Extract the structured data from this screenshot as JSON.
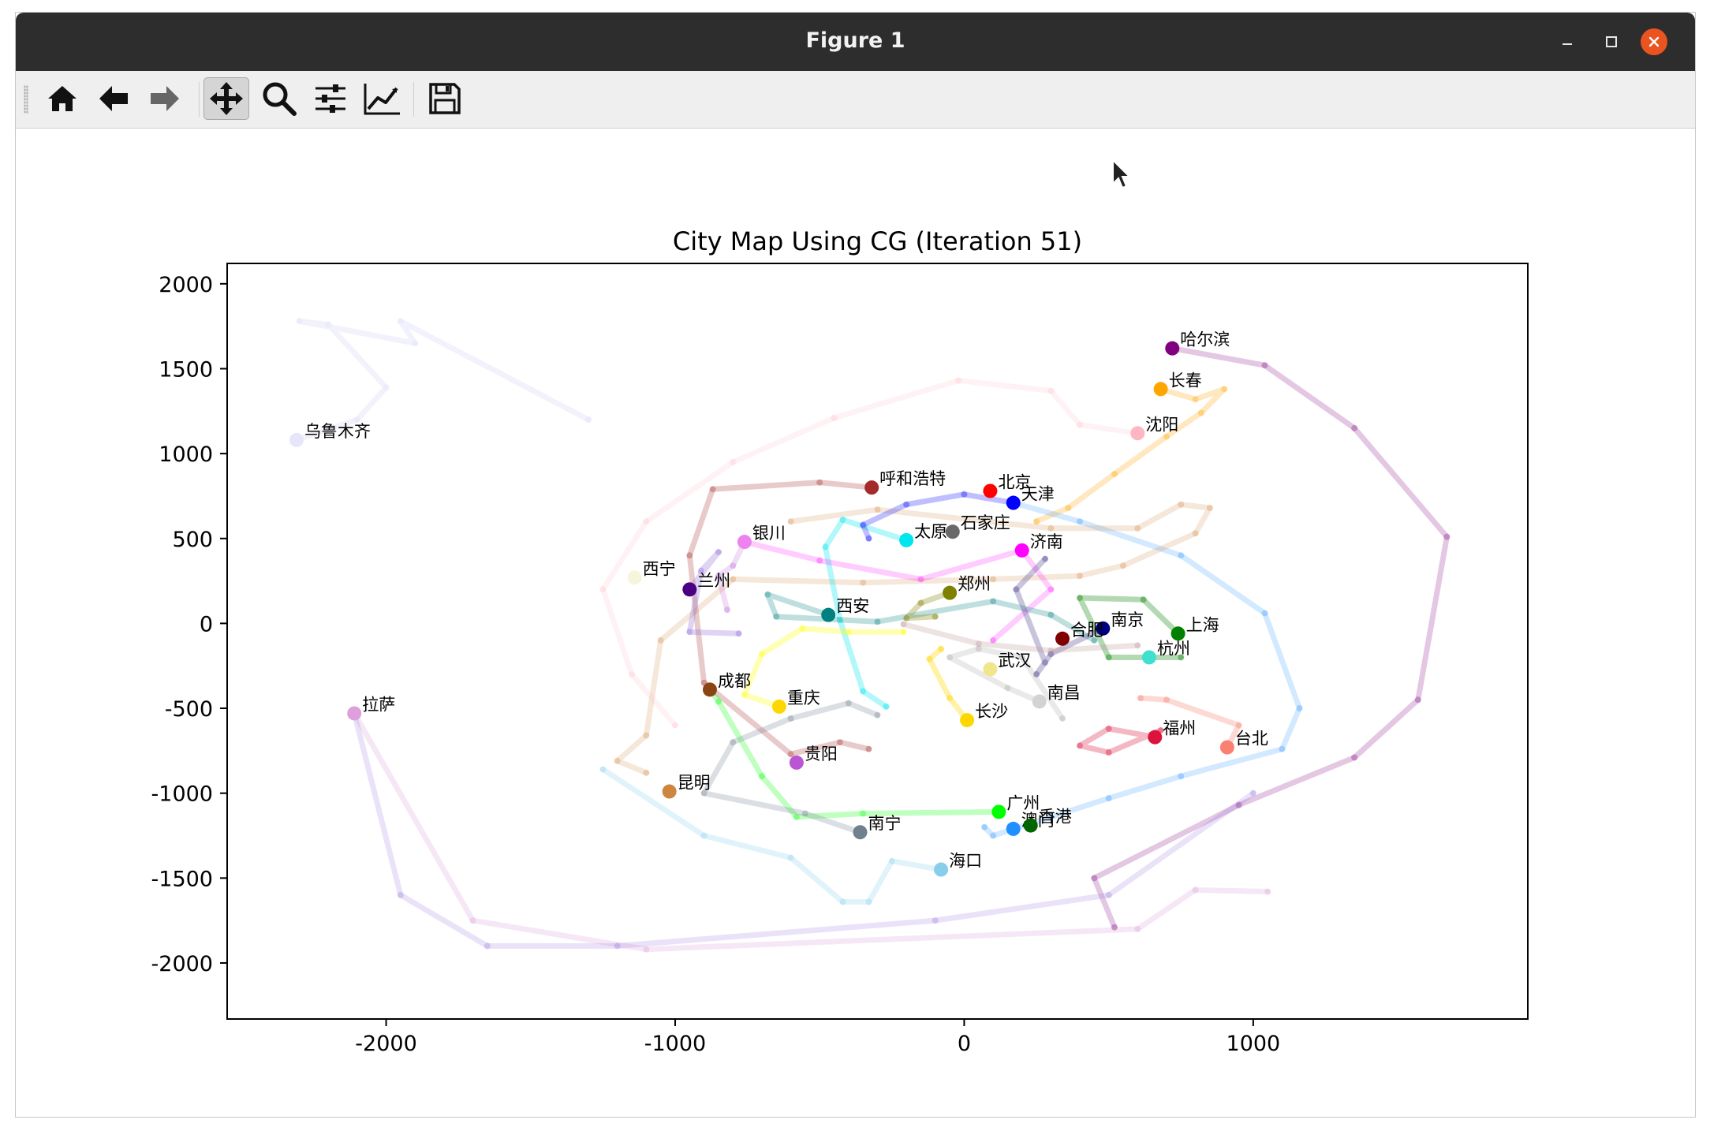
{
  "window": {
    "title": "Figure 1",
    "controls": {
      "minimize": "minimize-icon",
      "maximize": "maximize-icon",
      "close": "close-icon"
    },
    "accent": "#e95420"
  },
  "toolbar": {
    "buttons": [
      {
        "name": "home-button",
        "icon": "home-icon",
        "active": false
      },
      {
        "name": "back-button",
        "icon": "arrow-left-icon",
        "active": false
      },
      {
        "name": "forward-button",
        "icon": "arrow-right-icon",
        "active": false
      },
      {
        "name": "pan-button",
        "icon": "move-icon",
        "active": true
      },
      {
        "name": "zoom-button",
        "icon": "magnifier-icon",
        "active": false
      },
      {
        "name": "subplots-button",
        "icon": "sliders-icon",
        "active": false
      },
      {
        "name": "axes-edit-button",
        "icon": "line-chart-icon",
        "active": false
      },
      {
        "name": "save-button",
        "icon": "floppy-icon",
        "active": false
      }
    ]
  },
  "chart_data": {
    "type": "scatter",
    "title": "City Map Using CG (Iteration 51)",
    "xlabel": "",
    "ylabel": "",
    "xlim": [
      -2550,
      1950
    ],
    "ylim": [
      -2330,
      2120
    ],
    "xticks": [
      -2000,
      -1000,
      0,
      1000
    ],
    "xtick_labels": [
      "-2000",
      "-1000",
      "0",
      "1000"
    ],
    "yticks": [
      2000,
      1500,
      1000,
      500,
      0,
      -500,
      -1000,
      -1500,
      -2000
    ],
    "ytick_labels": [
      "2000",
      "1500",
      "1000",
      "500",
      "0",
      "-500",
      "-1000",
      "-1500",
      "-2000"
    ],
    "grid": false,
    "legend": "none",
    "points": [
      {
        "label": "哈尔滨",
        "x": 720,
        "y": 1620,
        "color": "#800080"
      },
      {
        "label": "长春",
        "x": 680,
        "y": 1380,
        "color": "#ffa500"
      },
      {
        "label": "沈阳",
        "x": 600,
        "y": 1120,
        "color": "#ffb6c1"
      },
      {
        "label": "乌鲁木齐",
        "x": -2310,
        "y": 1080,
        "color": "#e6e6fa"
      },
      {
        "label": "呼和浩特",
        "x": -320,
        "y": 800,
        "color": "#a52a2a"
      },
      {
        "label": "北京",
        "x": 90,
        "y": 780,
        "color": "#ff0000"
      },
      {
        "label": "天津",
        "x": 170,
        "y": 710,
        "color": "#0000ff"
      },
      {
        "label": "石家庄",
        "x": -40,
        "y": 540,
        "color": "#696969"
      },
      {
        "label": "太原",
        "x": -200,
        "y": 490,
        "color": "#00e5ee"
      },
      {
        "label": "济南",
        "x": 200,
        "y": 430,
        "color": "#ff00ff"
      },
      {
        "label": "银川",
        "x": -760,
        "y": 480,
        "color": "#ee82ee"
      },
      {
        "label": "西宁",
        "x": -1140,
        "y": 270,
        "color": "#f5f5dc"
      },
      {
        "label": "兰州",
        "x": -950,
        "y": 200,
        "color": "#4b0082"
      },
      {
        "label": "郑州",
        "x": -50,
        "y": 180,
        "color": "#808000"
      },
      {
        "label": "西安",
        "x": -470,
        "y": 50,
        "color": "#008080"
      },
      {
        "label": "南京",
        "x": 480,
        "y": -30,
        "color": "#000080"
      },
      {
        "label": "上海",
        "x": 740,
        "y": -60,
        "color": "#008000"
      },
      {
        "label": "合肥",
        "x": 340,
        "y": -90,
        "color": "#800000"
      },
      {
        "label": "杭州",
        "x": 640,
        "y": -200,
        "color": "#40e0d0"
      },
      {
        "label": "武汉",
        "x": 90,
        "y": -270,
        "color": "#f0e68c"
      },
      {
        "label": "成都",
        "x": -880,
        "y": -390,
        "color": "#8b4513"
      },
      {
        "label": "南昌",
        "x": 260,
        "y": -460,
        "color": "#d3d3d3"
      },
      {
        "label": "重庆",
        "x": -640,
        "y": -490,
        "color": "#ffd700"
      },
      {
        "label": "长沙",
        "x": 10,
        "y": -570,
        "color": "#ffd700"
      },
      {
        "label": "拉萨",
        "x": -2110,
        "y": -530,
        "color": "#dda0dd"
      },
      {
        "label": "福州",
        "x": 660,
        "y": -670,
        "color": "#dc143c"
      },
      {
        "label": "台北",
        "x": 910,
        "y": -730,
        "color": "#fa8072"
      },
      {
        "label": "贵阳",
        "x": -580,
        "y": -820,
        "color": "#ba55d3"
      },
      {
        "label": "昆明",
        "x": -1020,
        "y": -990,
        "color": "#cd853f"
      },
      {
        "label": "广州",
        "x": 120,
        "y": -1110,
        "color": "#00ff00"
      },
      {
        "label": "澳门",
        "x": 170,
        "y": -1210,
        "color": "#1e90ff"
      },
      {
        "label": "香港",
        "x": 230,
        "y": -1190,
        "color": "#006400"
      },
      {
        "label": "南宁",
        "x": -360,
        "y": -1230,
        "color": "#708090"
      },
      {
        "label": "海口",
        "x": -80,
        "y": -1450,
        "color": "#87ceeb"
      }
    ],
    "trails": [
      {
        "color": "#800080",
        "opacity": 0.22,
        "points": [
          [
            720,
            1620
          ],
          [
            1040,
            1520
          ],
          [
            1350,
            1150
          ],
          [
            1670,
            510
          ],
          [
            1570,
            -450
          ],
          [
            1350,
            -790
          ],
          [
            950,
            -1070
          ],
          [
            450,
            -1500
          ],
          [
            520,
            -1790
          ]
        ]
      },
      {
        "color": "#ffa500",
        "opacity": 0.25,
        "points": [
          [
            680,
            1380
          ],
          [
            800,
            1320
          ],
          [
            900,
            1380
          ],
          [
            820,
            1240
          ],
          [
            700,
            1100
          ],
          [
            520,
            880
          ],
          [
            360,
            680
          ],
          [
            250,
            600
          ]
        ]
      },
      {
        "color": "#1e90ff",
        "opacity": 0.2,
        "points": [
          [
            170,
            710
          ],
          [
            400,
            600
          ],
          [
            750,
            400
          ],
          [
            1040,
            60
          ],
          [
            1160,
            -500
          ],
          [
            1100,
            -740
          ],
          [
            750,
            -900
          ],
          [
            500,
            -1030
          ],
          [
            300,
            -1140
          ],
          [
            100,
            -1250
          ],
          [
            70,
            -1200
          ]
        ]
      },
      {
        "color": "#cd853f",
        "opacity": 0.2,
        "points": [
          [
            -600,
            600
          ],
          [
            -300,
            670
          ],
          [
            300,
            560
          ],
          [
            600,
            560
          ],
          [
            750,
            700
          ],
          [
            850,
            680
          ],
          [
            800,
            530
          ],
          [
            550,
            340
          ],
          [
            400,
            280
          ],
          [
            100,
            260
          ],
          [
            -350,
            240
          ],
          [
            -800,
            260
          ],
          [
            -1050,
            -100
          ],
          [
            -1100,
            -660
          ],
          [
            -1200,
            -810
          ],
          [
            -1100,
            -880
          ]
        ]
      },
      {
        "color": "#ffb6c1",
        "opacity": 0.18,
        "points": [
          [
            600,
            1120
          ],
          [
            400,
            1170
          ],
          [
            300,
            1370
          ],
          [
            -20,
            1430
          ],
          [
            -450,
            1210
          ],
          [
            -800,
            950
          ],
          [
            -1100,
            600
          ],
          [
            -1250,
            200
          ],
          [
            -1150,
            -300
          ],
          [
            -1000,
            -600
          ]
        ]
      },
      {
        "color": "#a52a2a",
        "opacity": 0.25,
        "points": [
          [
            -320,
            800
          ],
          [
            -500,
            830
          ],
          [
            -870,
            790
          ],
          [
            -950,
            400
          ],
          [
            -900,
            -350
          ],
          [
            -600,
            -770
          ],
          [
            -430,
            -700
          ],
          [
            -330,
            -740
          ]
        ]
      },
      {
        "color": "#e6e6fa",
        "opacity": 0.5,
        "points": [
          [
            -2310,
            1080
          ],
          [
            -2100,
            1200
          ],
          [
            -2000,
            1390
          ],
          [
            -2200,
            1760
          ],
          [
            -2300,
            1780
          ],
          [
            -1900,
            1650
          ],
          [
            -1950,
            1780
          ],
          [
            -1300,
            1200
          ]
        ]
      },
      {
        "color": "#dda0dd",
        "opacity": 0.25,
        "points": [
          [
            -2110,
            -530
          ],
          [
            -1700,
            -1750
          ],
          [
            -1100,
            -1920
          ],
          [
            600,
            -1800
          ],
          [
            800,
            -1570
          ],
          [
            1050,
            -1580
          ]
        ]
      },
      {
        "color": "#9370db",
        "opacity": 0.2,
        "points": [
          [
            -2110,
            -530
          ],
          [
            -1950,
            -1600
          ],
          [
            -1650,
            -1900
          ],
          [
            -1200,
            -1900
          ],
          [
            -100,
            -1750
          ],
          [
            500,
            -1600
          ],
          [
            1000,
            -1000
          ]
        ]
      },
      {
        "color": "#00e5ee",
        "opacity": 0.3,
        "points": [
          [
            -200,
            490
          ],
          [
            -420,
            610
          ],
          [
            -480,
            450
          ],
          [
            -430,
            20
          ],
          [
            -350,
            -400
          ],
          [
            -270,
            -490
          ]
        ]
      },
      {
        "color": "#ff00ff",
        "opacity": 0.2,
        "points": [
          [
            -760,
            480
          ],
          [
            -500,
            370
          ],
          [
            -150,
            260
          ],
          [
            200,
            430
          ],
          [
            300,
            200
          ],
          [
            100,
            -100
          ]
        ]
      },
      {
        "color": "#0000ff",
        "opacity": 0.25,
        "points": [
          [
            170,
            710
          ],
          [
            0,
            760
          ],
          [
            -200,
            700
          ],
          [
            -350,
            580
          ],
          [
            -330,
            500
          ]
        ]
      },
      {
        "color": "#008080",
        "opacity": 0.25,
        "points": [
          [
            -470,
            50
          ],
          [
            -680,
            170
          ],
          [
            -650,
            40
          ],
          [
            -300,
            10
          ],
          [
            100,
            130
          ],
          [
            300,
            50
          ],
          [
            450,
            -100
          ]
        ]
      },
      {
        "color": "#808000",
        "opacity": 0.3,
        "points": [
          [
            -50,
            180
          ],
          [
            -150,
            120
          ],
          [
            -200,
            30
          ],
          [
            -100,
            40
          ]
        ]
      },
      {
        "color": "#483d8b",
        "opacity": 0.3,
        "points": [
          [
            480,
            -30
          ],
          [
            300,
            -180
          ],
          [
            250,
            -300
          ],
          [
            280,
            -230
          ],
          [
            180,
            200
          ],
          [
            280,
            380
          ]
        ]
      },
      {
        "color": "#008000",
        "opacity": 0.3,
        "points": [
          [
            740,
            -60
          ],
          [
            620,
            140
          ],
          [
            400,
            150
          ],
          [
            500,
            -200
          ],
          [
            750,
            -200
          ]
        ]
      },
      {
        "color": "#dc143c",
        "opacity": 0.3,
        "points": [
          [
            660,
            -670
          ],
          [
            500,
            -620
          ],
          [
            400,
            -720
          ],
          [
            500,
            -760
          ],
          [
            680,
            -630
          ]
        ]
      },
      {
        "color": "#fa8072",
        "opacity": 0.3,
        "points": [
          [
            910,
            -730
          ],
          [
            950,
            -600
          ],
          [
            700,
            -450
          ],
          [
            610,
            -440
          ]
        ]
      },
      {
        "color": "#00ff00",
        "opacity": 0.25,
        "points": [
          [
            120,
            -1110
          ],
          [
            -350,
            -1120
          ],
          [
            -580,
            -1140
          ],
          [
            -700,
            -900
          ],
          [
            -850,
            -460
          ],
          [
            -880,
            -390
          ]
        ]
      },
      {
        "color": "#708090",
        "opacity": 0.25,
        "points": [
          [
            -360,
            -1230
          ],
          [
            -550,
            -1120
          ],
          [
            -900,
            -1000
          ],
          [
            -800,
            -700
          ],
          [
            -600,
            -560
          ],
          [
            -400,
            -470
          ],
          [
            -300,
            -540
          ]
        ]
      },
      {
        "color": "#87ceeb",
        "opacity": 0.25,
        "points": [
          [
            -80,
            -1450
          ],
          [
            -250,
            -1400
          ],
          [
            -330,
            -1640
          ],
          [
            -420,
            -1640
          ],
          [
            -600,
            -1380
          ],
          [
            -900,
            -1250
          ],
          [
            -1250,
            -860
          ]
        ]
      },
      {
        "color": "#ffd700",
        "opacity": 0.35,
        "points": [
          [
            10,
            -570
          ],
          [
            -50,
            -440
          ],
          [
            -120,
            -210
          ],
          [
            -80,
            -150
          ]
        ]
      },
      {
        "color": "#ffff00",
        "opacity": 0.3,
        "points": [
          [
            -640,
            -490
          ],
          [
            -760,
            -420
          ],
          [
            -700,
            -180
          ],
          [
            -560,
            -30
          ],
          [
            -400,
            -50
          ],
          [
            -210,
            -50
          ]
        ]
      },
      {
        "color": "#a9a9a9",
        "opacity": 0.25,
        "points": [
          [
            260,
            -460
          ],
          [
            150,
            -380
          ],
          [
            -50,
            -200
          ],
          [
            50,
            -150
          ],
          [
            200,
            -200
          ],
          [
            340,
            -560
          ]
        ]
      },
      {
        "color": "#bc8f8f",
        "opacity": 0.25,
        "points": [
          [
            -210,
            -5
          ],
          [
            50,
            -120
          ],
          [
            300,
            -160
          ],
          [
            600,
            -130
          ]
        ]
      },
      {
        "color": "#9370db",
        "opacity": 0.3,
        "points": [
          [
            -950,
            200
          ],
          [
            -850,
            420
          ],
          [
            -910,
            310
          ],
          [
            -950,
            -50
          ],
          [
            -780,
            -60
          ]
        ]
      },
      {
        "color": "#ba55d3",
        "opacity": 0.2,
        "points": [
          [
            -760,
            480
          ],
          [
            -800,
            340
          ],
          [
            -850,
            280
          ],
          [
            -820,
            80
          ]
        ]
      }
    ]
  }
}
